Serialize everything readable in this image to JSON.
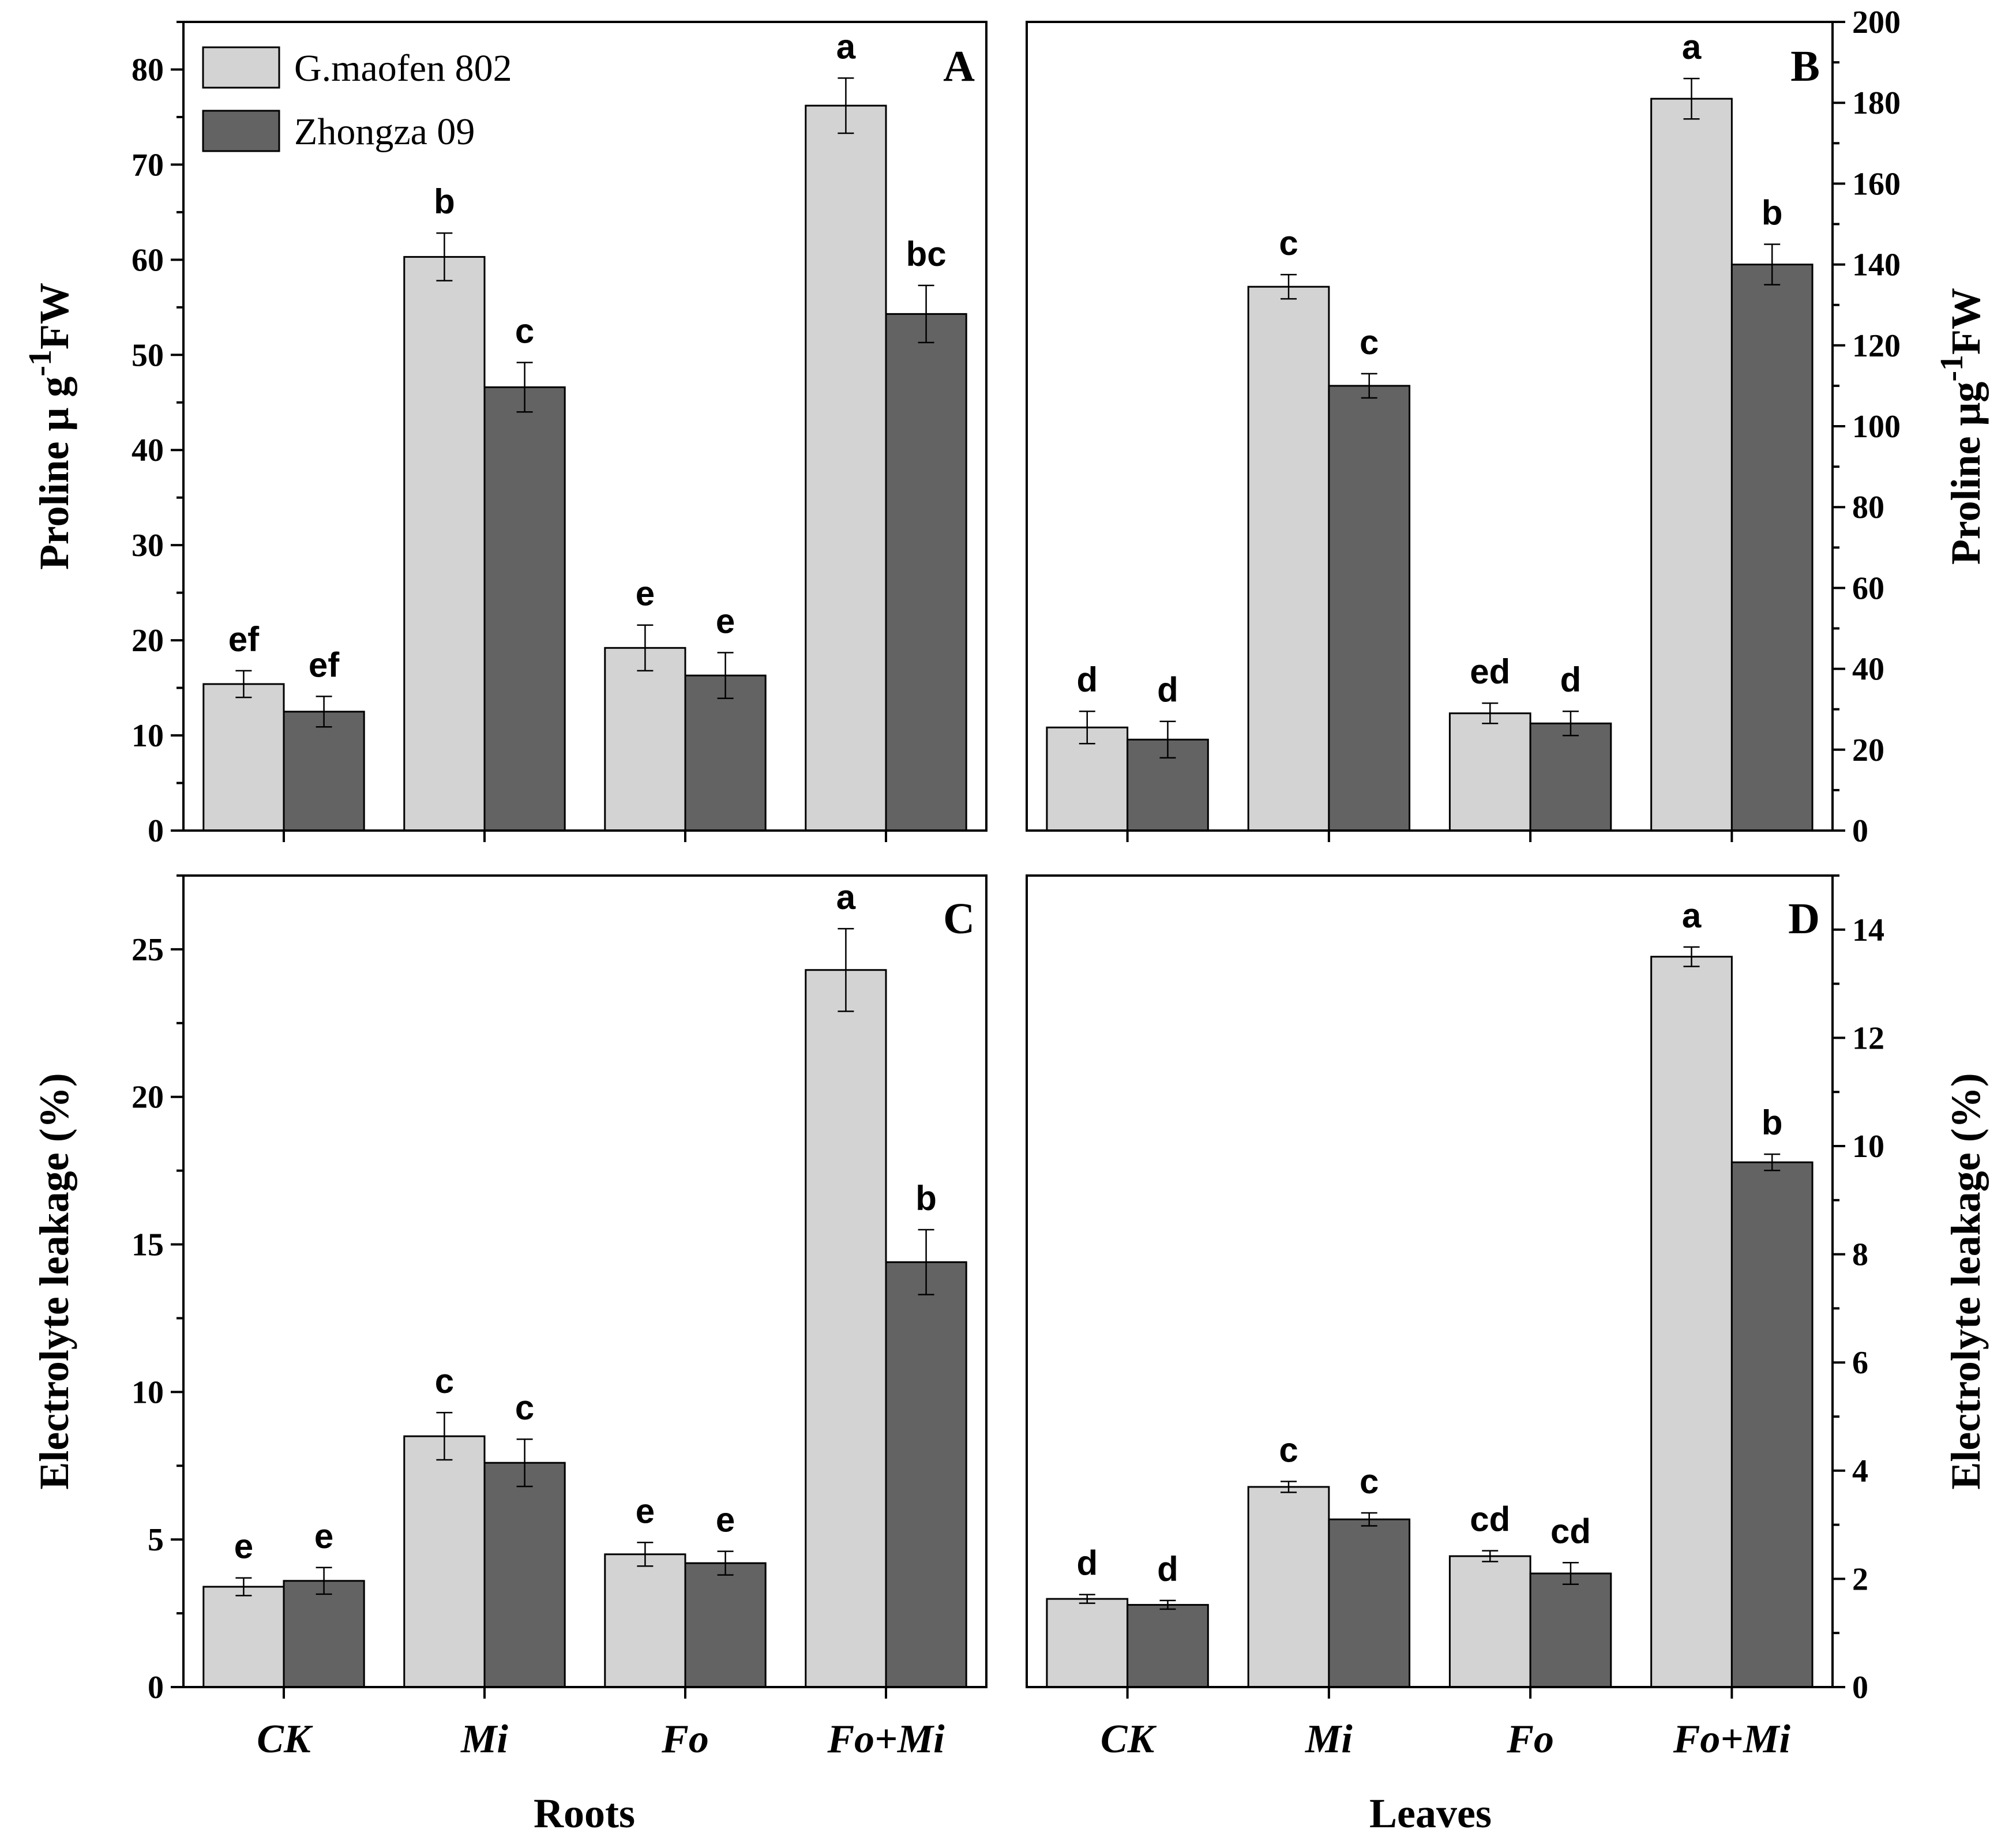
{
  "colors": {
    "light": "#d3d3d3",
    "dark": "#636363",
    "axis": "#000000"
  },
  "legend": {
    "placement": "top-left",
    "items": [
      {
        "name": "G.maofen 802",
        "color": "#d3d3d3"
      },
      {
        "name": "Zhongza 09",
        "color": "#636363"
      }
    ]
  },
  "x_group_titles": {
    "left": "Roots",
    "right": "Leaves"
  },
  "categories": [
    "CK",
    "Mi",
    "Fo",
    "Fo+Mi"
  ],
  "chart_data": [
    {
      "panel": "A",
      "type": "bar",
      "ylabel": "Proline μ g-1FW",
      "ylabel_parts": [
        "Proline μ g",
        "-1",
        "FW"
      ],
      "ylabel_side": "left",
      "categories": [
        "CK",
        "Mi",
        "Fo",
        "Fo+Mi"
      ],
      "ylim": [
        0,
        85
      ],
      "yticks": [
        0,
        10,
        20,
        30,
        40,
        50,
        60,
        70,
        80
      ],
      "series": [
        {
          "name": "G.maofen 802",
          "values": [
            15.4,
            60.3,
            19.2,
            76.2
          ],
          "errors": [
            1.4,
            2.5,
            2.4,
            2.9
          ],
          "labels": [
            "ef",
            "b",
            "e",
            "a"
          ]
        },
        {
          "name": "Zhongza 09",
          "values": [
            12.5,
            46.6,
            16.3,
            54.3
          ],
          "errors": [
            1.6,
            2.6,
            2.4,
            3.0
          ],
          "labels": [
            "ef",
            "c",
            "e",
            "bc"
          ]
        }
      ]
    },
    {
      "panel": "B",
      "type": "bar",
      "ylabel": "Proline μg-1FW",
      "ylabel_parts": [
        "Proline μg",
        "-1",
        "FW"
      ],
      "ylabel_side": "right",
      "categories": [
        "CK",
        "Mi",
        "Fo",
        "Fo+Mi"
      ],
      "ylim": [
        0,
        200
      ],
      "yticks": [
        0,
        20,
        40,
        60,
        80,
        100,
        120,
        140,
        160,
        180,
        200
      ],
      "series": [
        {
          "name": "G.maofen 802",
          "values": [
            25.5,
            134.5,
            29.0,
            181.0
          ],
          "errors": [
            4.0,
            3.0,
            2.5,
            5.0
          ],
          "labels": [
            "d",
            "c",
            "ed",
            "a"
          ]
        },
        {
          "name": "Zhongza 09",
          "values": [
            22.5,
            110.0,
            26.5,
            140.0
          ],
          "errors": [
            4.5,
            3.0,
            3.0,
            5.0
          ],
          "labels": [
            "d",
            "c",
            "d",
            "b"
          ]
        }
      ]
    },
    {
      "panel": "C",
      "type": "bar",
      "ylabel": "Electrolyte leakage (%)",
      "ylabel_side": "left",
      "categories": [
        "CK",
        "Mi",
        "Fo",
        "Fo+Mi"
      ],
      "ylim": [
        0,
        27.5
      ],
      "yticks": [
        0,
        5,
        10,
        15,
        20,
        25
      ],
      "series": [
        {
          "name": "G.maofen 802",
          "values": [
            3.4,
            8.5,
            4.5,
            24.3
          ],
          "errors": [
            0.3,
            0.8,
            0.4,
            1.4
          ],
          "labels": [
            "e",
            "c",
            "e",
            "a"
          ]
        },
        {
          "name": "Zhongza 09",
          "values": [
            3.6,
            7.6,
            4.2,
            14.4
          ],
          "errors": [
            0.45,
            0.8,
            0.4,
            1.1
          ],
          "labels": [
            "e",
            "c",
            "e",
            "b"
          ]
        }
      ]
    },
    {
      "panel": "D",
      "type": "bar",
      "ylabel": "Electrolyte leakage (%)",
      "ylabel_side": "right",
      "categories": [
        "CK",
        "Mi",
        "Fo",
        "Fo+Mi"
      ],
      "ylim": [
        0,
        15
      ],
      "yticks": [
        0,
        2,
        4,
        6,
        8,
        10,
        12,
        14
      ],
      "series": [
        {
          "name": "G.maofen 802",
          "values": [
            1.63,
            3.7,
            2.42,
            13.5
          ],
          "errors": [
            0.08,
            0.1,
            0.1,
            0.18
          ],
          "labels": [
            "d",
            "c",
            "cd",
            "a"
          ]
        },
        {
          "name": "Zhongza 09",
          "values": [
            1.52,
            3.1,
            2.1,
            9.7
          ],
          "errors": [
            0.08,
            0.12,
            0.2,
            0.15
          ],
          "labels": [
            "d",
            "c",
            "cd",
            "b"
          ]
        }
      ]
    }
  ]
}
